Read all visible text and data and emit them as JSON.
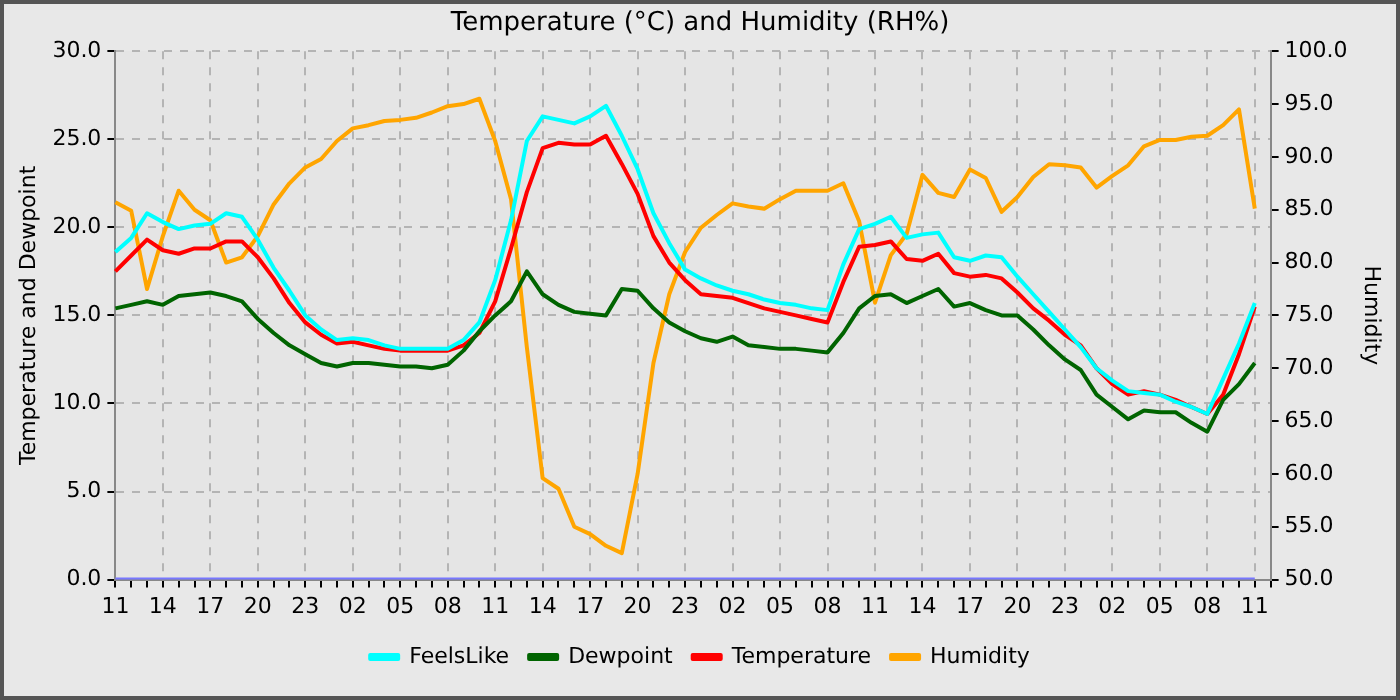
{
  "chart_data": {
    "type": "line",
    "title": "Temperature (°C) and Humidity (RH%)",
    "ylabel": "Temperature and Dewpoint",
    "y2label": "Humidity",
    "categories": [
      "11",
      null,
      null,
      "14",
      null,
      null,
      "17",
      null,
      null,
      "20",
      null,
      null,
      "23",
      null,
      null,
      "02",
      null,
      null,
      "05",
      null,
      null,
      "08",
      null,
      null,
      "11",
      null,
      null,
      "14",
      null,
      null,
      "17",
      null,
      null,
      "20",
      null,
      null,
      "23",
      null,
      null,
      "02",
      null,
      null,
      "05",
      null,
      null,
      "08",
      null,
      null,
      "11",
      null,
      null,
      "14",
      null,
      null,
      "17",
      null,
      null,
      "20",
      null,
      null,
      "23",
      null,
      null,
      "02",
      null,
      null,
      "05",
      null,
      null,
      "08",
      null,
      null,
      "11",
      null
    ],
    "ylim": [
      0,
      30
    ],
    "yticks": [
      {
        "value": 0,
        "label": "0.0"
      },
      {
        "value": 5,
        "label": "5.0"
      },
      {
        "value": 10,
        "label": "10.0"
      },
      {
        "value": 15,
        "label": "15.0"
      },
      {
        "value": 20,
        "label": "20.0"
      },
      {
        "value": 25,
        "label": "25.0"
      },
      {
        "value": 30,
        "label": "30.0"
      }
    ],
    "y2lim": [
      50,
      100
    ],
    "y2ticks": [
      {
        "value": 50,
        "label": "50.0"
      },
      {
        "value": 55,
        "label": "55.0"
      },
      {
        "value": 60,
        "label": "60.0"
      },
      {
        "value": 65,
        "label": "65.0"
      },
      {
        "value": 70,
        "label": "70.0"
      },
      {
        "value": 75,
        "label": "75.0"
      },
      {
        "value": 80,
        "label": "80.0"
      },
      {
        "value": 85,
        "label": "85.0"
      },
      {
        "value": 90,
        "label": "90.0"
      },
      {
        "value": 95,
        "label": "95.0"
      },
      {
        "value": 100,
        "label": "100.0"
      }
    ],
    "grid": true,
    "legend": "bottom",
    "marker": "none",
    "line_style": "solid",
    "series": [
      {
        "name": "FeelsLike",
        "color": "#00ffff",
        "values": [
          18.6,
          19.4,
          20.8,
          20.3,
          19.9,
          20.1,
          20.2,
          20.8,
          20.6,
          19.3,
          17.7,
          16.4,
          15.0,
          14.2,
          13.6,
          13.7,
          13.6,
          13.3,
          13.1,
          13.1,
          13.1,
          13.1,
          13.6,
          14.6,
          17.0,
          20.4,
          24.9,
          26.3,
          26.1,
          25.9,
          26.3,
          26.9,
          25.2,
          23.3,
          20.8,
          19.1,
          17.6,
          17.1,
          16.7,
          16.4,
          16.2,
          15.9,
          15.7,
          15.6,
          15.4,
          15.3,
          17.9,
          19.9,
          20.2,
          20.6,
          19.4,
          19.6,
          19.7,
          18.3,
          18.1,
          18.4,
          18.3,
          17.2,
          16.2,
          15.2,
          14.2,
          13.2,
          12.0,
          11.3,
          10.7,
          10.6,
          10.5,
          10.1,
          9.8,
          9.4,
          11.4,
          13.4,
          15.7,
          null
        ]
      },
      {
        "name": "Dewpoint",
        "color": "#006400",
        "values": [
          15.4,
          15.6,
          15.8,
          15.6,
          16.1,
          16.2,
          16.3,
          16.1,
          15.8,
          14.8,
          14.0,
          13.3,
          12.8,
          12.3,
          12.1,
          12.3,
          12.3,
          12.2,
          12.1,
          12.1,
          12.0,
          12.2,
          13.0,
          14.1,
          15.0,
          15.8,
          17.5,
          16.2,
          15.6,
          15.2,
          15.1,
          15.0,
          16.5,
          16.4,
          15.4,
          14.6,
          14.1,
          13.7,
          13.5,
          13.8,
          13.3,
          13.2,
          13.1,
          13.1,
          13.0,
          12.9,
          14.0,
          15.4,
          16.1,
          16.2,
          15.7,
          16.1,
          16.5,
          15.5,
          15.7,
          15.3,
          15.0,
          15.0,
          14.2,
          13.3,
          12.5,
          11.9,
          10.5,
          9.8,
          9.1,
          9.6,
          9.5,
          9.5,
          8.9,
          8.4,
          10.2,
          11.1,
          12.3,
          null
        ]
      },
      {
        "name": "Temperature",
        "color": "#ff0000",
        "values": [
          17.5,
          18.4,
          19.3,
          18.7,
          18.5,
          18.8,
          18.8,
          19.2,
          19.2,
          18.3,
          17.1,
          15.7,
          14.6,
          13.9,
          13.4,
          13.5,
          13.3,
          13.1,
          13.0,
          13.0,
          13.0,
          13.0,
          13.3,
          14.0,
          15.8,
          18.8,
          22.0,
          24.5,
          24.8,
          24.7,
          24.7,
          25.2,
          23.6,
          21.9,
          19.5,
          18.0,
          17.0,
          16.2,
          16.1,
          16.0,
          15.7,
          15.4,
          15.2,
          15.0,
          14.8,
          14.6,
          16.9,
          18.9,
          19.0,
          19.2,
          18.2,
          18.1,
          18.5,
          17.4,
          17.2,
          17.3,
          17.1,
          16.3,
          15.4,
          14.7,
          13.9,
          13.3,
          12.0,
          11.1,
          10.5,
          10.7,
          10.5,
          10.2,
          9.8,
          9.4,
          10.5,
          12.8,
          15.5,
          null
        ]
      },
      {
        "name": "Humidity",
        "color": "#ffa500",
        "axis": "y2",
        "values": [
          85.7,
          84.9,
          77.5,
          82.5,
          86.8,
          85.0,
          84.0,
          80.0,
          80.5,
          82.5,
          85.5,
          87.5,
          89.0,
          89.8,
          91.5,
          92.7,
          93.0,
          93.4,
          93.5,
          93.7,
          94.2,
          94.8,
          95.0,
          95.5,
          91.5,
          86.0,
          72.0,
          59.6,
          58.6,
          55.0,
          54.3,
          53.2,
          52.5,
          60.0,
          70.5,
          77.0,
          81.0,
          83.3,
          84.5,
          85.6,
          85.3,
          85.1,
          86.0,
          86.8,
          86.8,
          86.8,
          87.5,
          83.9,
          76.2,
          80.7,
          82.7,
          88.3,
          86.6,
          86.2,
          88.8,
          88.0,
          84.8,
          86.2,
          88.1,
          89.3,
          89.2,
          89.0,
          87.1,
          88.2,
          89.2,
          91.0,
          91.6,
          91.6,
          91.9,
          92.0,
          93.0,
          94.5,
          85.1,
          null
        ]
      },
      {
        "color": "#7777ff",
        "values": [
          0,
          0,
          0,
          0,
          0,
          0,
          0,
          0,
          0,
          0,
          0,
          0,
          0,
          0,
          0,
          0,
          0,
          0,
          0,
          0,
          0,
          0,
          0,
          0,
          0,
          0,
          0,
          0,
          0,
          0,
          0,
          0,
          0,
          0,
          0,
          0,
          0,
          0,
          0,
          0,
          0,
          0,
          0,
          0,
          0,
          0,
          0,
          0,
          0,
          0,
          0,
          0,
          0,
          0,
          0,
          0,
          0,
          0,
          0,
          0,
          0,
          0,
          0,
          0,
          0,
          0,
          0,
          0,
          0,
          0,
          0,
          0,
          0,
          null
        ]
      }
    ]
  }
}
